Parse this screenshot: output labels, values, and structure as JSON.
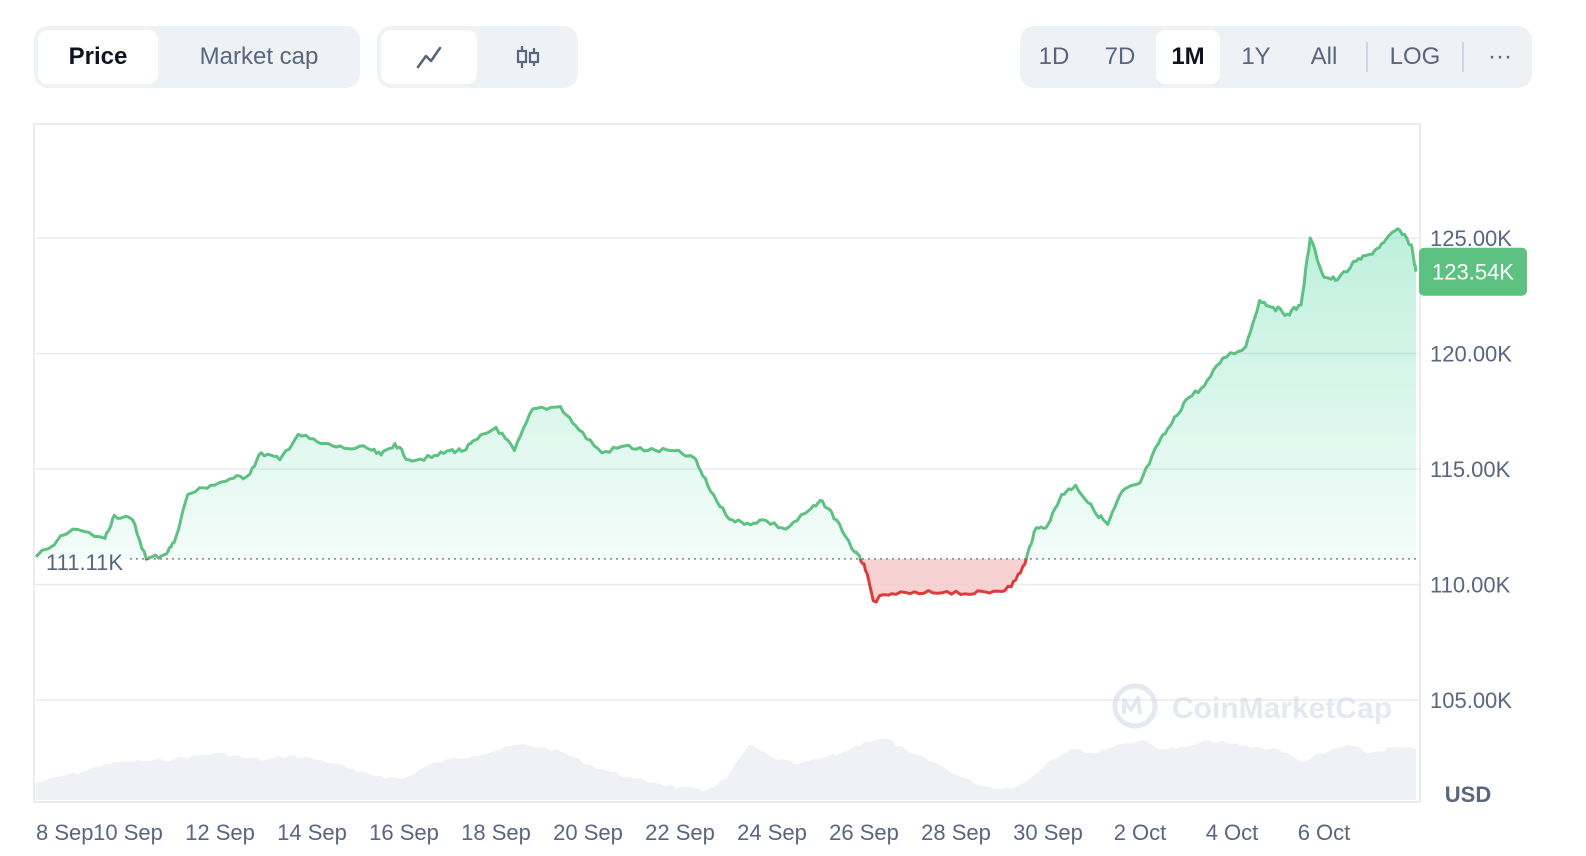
{
  "toolbar": {
    "metric_tabs": [
      {
        "label": "Price",
        "active": true
      },
      {
        "label": "Market cap",
        "active": false
      }
    ],
    "chart_type_buttons": [
      {
        "icon": "line-chart-icon",
        "active": true
      },
      {
        "icon": "candlestick-icon",
        "active": false
      }
    ],
    "range_buttons": [
      {
        "label": "1D",
        "active": false
      },
      {
        "label": "7D",
        "active": false
      },
      {
        "label": "1M",
        "active": true
      },
      {
        "label": "1Y",
        "active": false
      },
      {
        "label": "All",
        "active": false
      }
    ],
    "log_label": "LOG",
    "more_label": "···"
  },
  "watermark": "CoinMarketCap",
  "colors": {
    "up": "#16c784",
    "line_up": "#5cc181",
    "line_down": "#dd3c3c",
    "fill_down": "#f5caca",
    "volume": "#eff1f4",
    "grid": "#e8ebef",
    "badge": "#5cc181"
  },
  "chart_data": {
    "type": "line",
    "y_axis": {
      "range": [
        100000,
        130000
      ],
      "ticks": [
        105000,
        110000,
        115000,
        120000,
        125000
      ],
      "tick_labels": [
        "105.00K",
        "110.00K",
        "115.00K",
        "120.00K",
        "125.00K"
      ],
      "unit_label": "USD",
      "position": "right"
    },
    "x_axis": {
      "range": [
        0,
        30
      ],
      "tick_labels": [
        "8 Sep",
        "10 Sep",
        "12 Sep",
        "14 Sep",
        "16 Sep",
        "18 Sep",
        "20 Sep",
        "22 Sep",
        "24 Sep",
        "26 Sep",
        "28 Sep",
        "30 Sep",
        "2 Oct",
        "4 Oct",
        "6 Oct"
      ],
      "tick_positions": [
        0,
        2,
        4,
        6,
        8,
        10,
        12,
        14,
        16,
        18,
        20,
        22,
        24,
        26,
        28
      ]
    },
    "baseline": {
      "value": 111110,
      "label": "111.11K"
    },
    "current": {
      "value": 123540,
      "label": "123.54K"
    },
    "price": [
      [
        0.0,
        111200
      ],
      [
        0.8,
        112400
      ],
      [
        1.5,
        112000
      ],
      [
        1.7,
        113000
      ],
      [
        2.1,
        112800
      ],
      [
        2.4,
        111100
      ],
      [
        2.8,
        111300
      ],
      [
        3.0,
        111800
      ],
      [
        3.3,
        113900
      ],
      [
        3.8,
        114300
      ],
      [
        4.3,
        114600
      ],
      [
        4.6,
        114700
      ],
      [
        4.9,
        115700
      ],
      [
        5.3,
        115400
      ],
      [
        5.7,
        116500
      ],
      [
        6.2,
        116100
      ],
      [
        6.7,
        115900
      ],
      [
        7.2,
        115900
      ],
      [
        7.5,
        115600
      ],
      [
        7.8,
        116100
      ],
      [
        8.1,
        115400
      ],
      [
        8.6,
        115500
      ],
      [
        9.0,
        115800
      ],
      [
        9.3,
        115800
      ],
      [
        9.6,
        116300
      ],
      [
        10.0,
        116800
      ],
      [
        10.4,
        115800
      ],
      [
        10.8,
        117600
      ],
      [
        11.4,
        117700
      ],
      [
        11.8,
        116700
      ],
      [
        12.3,
        115700
      ],
      [
        12.8,
        116000
      ],
      [
        13.3,
        115800
      ],
      [
        13.8,
        115800
      ],
      [
        14.3,
        115500
      ],
      [
        14.6,
        114300
      ],
      [
        15.0,
        113000
      ],
      [
        15.4,
        112600
      ],
      [
        15.8,
        112800
      ],
      [
        16.3,
        112400
      ],
      [
        16.8,
        113200
      ],
      [
        17.1,
        113600
      ],
      [
        17.4,
        112800
      ],
      [
        17.8,
        111400
      ],
      [
        18.0,
        110900
      ],
      [
        18.2,
        109300
      ],
      [
        18.6,
        109600
      ],
      [
        19.2,
        109600
      ],
      [
        19.8,
        109700
      ],
      [
        20.4,
        109600
      ],
      [
        20.8,
        109700
      ],
      [
        21.2,
        109900
      ],
      [
        21.5,
        110900
      ],
      [
        21.7,
        112300
      ],
      [
        22.0,
        112600
      ],
      [
        22.3,
        113900
      ],
      [
        22.6,
        114300
      ],
      [
        23.0,
        113200
      ],
      [
        23.3,
        112600
      ],
      [
        23.6,
        114000
      ],
      [
        24.0,
        114400
      ],
      [
        24.4,
        116100
      ],
      [
        24.7,
        117000
      ],
      [
        25.0,
        118000
      ],
      [
        25.4,
        118600
      ],
      [
        25.8,
        119800
      ],
      [
        26.3,
        120300
      ],
      [
        26.6,
        122300
      ],
      [
        26.9,
        122000
      ],
      [
        27.2,
        121700
      ],
      [
        27.5,
        122100
      ],
      [
        27.7,
        125000
      ],
      [
        28.0,
        123300
      ],
      [
        28.3,
        123200
      ],
      [
        28.7,
        124000
      ],
      [
        29.0,
        124300
      ],
      [
        29.3,
        124800
      ],
      [
        29.6,
        125400
      ],
      [
        29.9,
        124700
      ],
      [
        30.0,
        123540
      ]
    ],
    "volume": [
      [
        0.0,
        0.2
      ],
      [
        0.5,
        0.27
      ],
      [
        1.0,
        0.33
      ],
      [
        1.5,
        0.42
      ],
      [
        2.0,
        0.45
      ],
      [
        2.5,
        0.46
      ],
      [
        3.0,
        0.48
      ],
      [
        3.5,
        0.52
      ],
      [
        4.0,
        0.55
      ],
      [
        4.5,
        0.5
      ],
      [
        5.0,
        0.47
      ],
      [
        5.5,
        0.52
      ],
      [
        6.0,
        0.49
      ],
      [
        6.5,
        0.43
      ],
      [
        7.0,
        0.33
      ],
      [
        7.5,
        0.28
      ],
      [
        8.0,
        0.25
      ],
      [
        8.5,
        0.4
      ],
      [
        9.0,
        0.48
      ],
      [
        9.5,
        0.52
      ],
      [
        10.0,
        0.58
      ],
      [
        10.5,
        0.65
      ],
      [
        11.0,
        0.62
      ],
      [
        11.5,
        0.55
      ],
      [
        12.0,
        0.42
      ],
      [
        12.5,
        0.33
      ],
      [
        13.0,
        0.25
      ],
      [
        13.5,
        0.2
      ],
      [
        14.0,
        0.15
      ],
      [
        14.5,
        0.1
      ],
      [
        15.0,
        0.25
      ],
      [
        15.5,
        0.65
      ],
      [
        16.0,
        0.5
      ],
      [
        16.5,
        0.42
      ],
      [
        17.0,
        0.48
      ],
      [
        17.5,
        0.55
      ],
      [
        18.0,
        0.68
      ],
      [
        18.5,
        0.72
      ],
      [
        19.0,
        0.55
      ],
      [
        19.5,
        0.45
      ],
      [
        20.0,
        0.3
      ],
      [
        20.5,
        0.18
      ],
      [
        21.0,
        0.13
      ],
      [
        21.5,
        0.2
      ],
      [
        22.0,
        0.45
      ],
      [
        22.5,
        0.6
      ],
      [
        23.0,
        0.55
      ],
      [
        23.5,
        0.65
      ],
      [
        24.0,
        0.7
      ],
      [
        24.5,
        0.6
      ],
      [
        25.0,
        0.62
      ],
      [
        25.5,
        0.7
      ],
      [
        26.0,
        0.66
      ],
      [
        26.5,
        0.62
      ],
      [
        27.0,
        0.6
      ],
      [
        27.5,
        0.45
      ],
      [
        28.0,
        0.55
      ],
      [
        28.5,
        0.65
      ],
      [
        29.0,
        0.55
      ],
      [
        29.5,
        0.62
      ],
      [
        30.0,
        0.6
      ]
    ]
  }
}
